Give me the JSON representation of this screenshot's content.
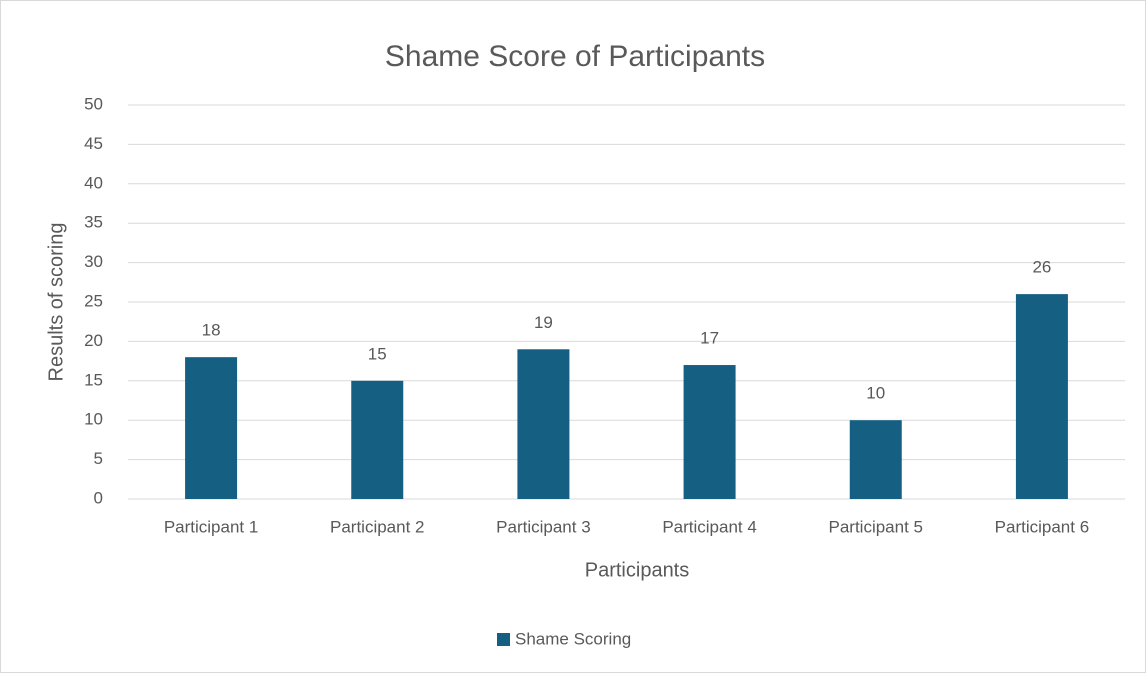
{
  "chart_data": {
    "type": "bar",
    "title": "Shame Score of Participants",
    "x_label": "Participants",
    "y_label": "Results of scoring",
    "categories": [
      "Participant 1",
      "Participant 2",
      "Participant 3",
      "Participant 4",
      "Participant 5",
      "Participant 6"
    ],
    "series": [
      {
        "name": "Shame Scoring",
        "color": "#156082",
        "values": [
          18,
          15,
          19,
          17,
          10,
          26
        ]
      }
    ],
    "ylim": [
      0,
      50
    ],
    "yticks": [
      0,
      5,
      10,
      15,
      20,
      25,
      30,
      35,
      40,
      45,
      50
    ],
    "grid": true,
    "legend": "bottom"
  }
}
